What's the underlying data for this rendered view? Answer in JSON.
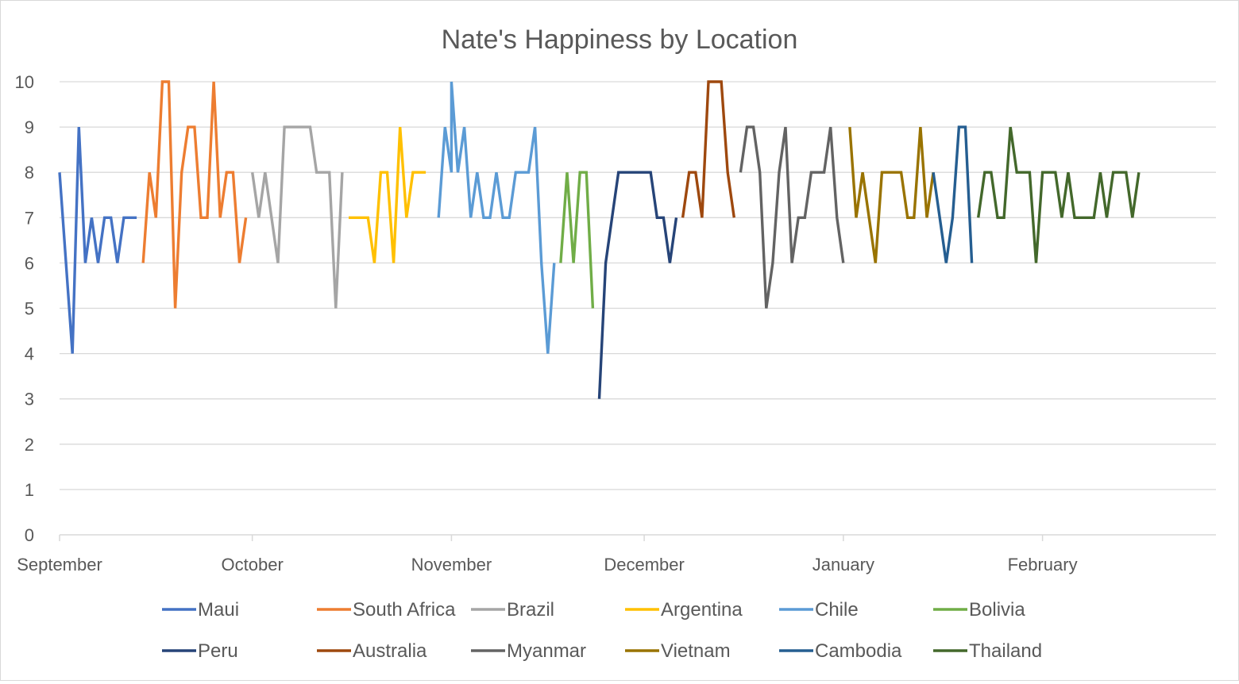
{
  "chart_data": {
    "type": "line",
    "title": "Nate's Happiness by Location",
    "xlabel": "",
    "ylabel": "",
    "x_domain": [
      "2018-09-01",
      "2019-02-28"
    ],
    "ylim": [
      0,
      10
    ],
    "y_ticks": [
      0,
      1,
      2,
      3,
      4,
      5,
      6,
      7,
      8,
      9,
      10
    ],
    "x_ticks": [
      {
        "label": "September",
        "date": "2018-09-01"
      },
      {
        "label": "October",
        "date": "2018-10-01"
      },
      {
        "label": "November",
        "date": "2018-11-01"
      },
      {
        "label": "December",
        "date": "2018-12-01"
      },
      {
        "label": "January",
        "date": "2019-01-01"
      },
      {
        "label": "February",
        "date": "2019-02-01"
      }
    ],
    "grid": true,
    "legend_position": "bottom",
    "series": [
      {
        "name": "Maui",
        "color": "#4472C4",
        "points": [
          [
            "2018-09-01",
            8
          ],
          [
            "2018-09-03",
            4
          ],
          [
            "2018-09-04",
            9
          ],
          [
            "2018-09-05",
            6
          ],
          [
            "2018-09-06",
            7
          ],
          [
            "2018-09-07",
            6
          ],
          [
            "2018-09-08",
            7
          ],
          [
            "2018-09-09",
            7
          ],
          [
            "2018-09-10",
            6
          ],
          [
            "2018-09-11",
            7
          ],
          [
            "2018-09-12",
            7
          ],
          [
            "2018-09-13",
            7
          ]
        ]
      },
      {
        "name": "South Africa",
        "color": "#ED7D31",
        "points": [
          [
            "2018-09-14",
            6
          ],
          [
            "2018-09-15",
            8
          ],
          [
            "2018-09-16",
            7
          ],
          [
            "2018-09-17",
            10
          ],
          [
            "2018-09-18",
            10
          ],
          [
            "2018-09-19",
            5
          ],
          [
            "2018-09-20",
            8
          ],
          [
            "2018-09-21",
            9
          ],
          [
            "2018-09-22",
            9
          ],
          [
            "2018-09-23",
            7
          ],
          [
            "2018-09-24",
            7
          ],
          [
            "2018-09-25",
            10
          ],
          [
            "2018-09-26",
            7
          ],
          [
            "2018-09-27",
            8
          ],
          [
            "2018-09-28",
            8
          ],
          [
            "2018-09-29",
            6
          ],
          [
            "2018-09-30",
            7
          ]
        ]
      },
      {
        "name": "Brazil",
        "color": "#A5A5A5",
        "points": [
          [
            "2018-10-01",
            8
          ],
          [
            "2018-10-02",
            7
          ],
          [
            "2018-10-03",
            8
          ],
          [
            "2018-10-05",
            6
          ],
          [
            "2018-10-06",
            9
          ],
          [
            "2018-10-07",
            9
          ],
          [
            "2018-10-08",
            9
          ],
          [
            "2018-10-09",
            9
          ],
          [
            "2018-10-10",
            9
          ],
          [
            "2018-10-11",
            8
          ],
          [
            "2018-10-12",
            8
          ],
          [
            "2018-10-13",
            8
          ],
          [
            "2018-10-14",
            5
          ],
          [
            "2018-10-15",
            8
          ]
        ]
      },
      {
        "name": "Argentina",
        "color": "#FFC000",
        "points": [
          [
            "2018-10-16",
            7
          ],
          [
            "2018-10-17",
            7
          ],
          [
            "2018-10-18",
            7
          ],
          [
            "2018-10-19",
            7
          ],
          [
            "2018-10-20",
            6
          ],
          [
            "2018-10-21",
            8
          ],
          [
            "2018-10-22",
            8
          ],
          [
            "2018-10-23",
            6
          ],
          [
            "2018-10-24",
            9
          ],
          [
            "2018-10-25",
            7
          ],
          [
            "2018-10-26",
            8
          ],
          [
            "2018-10-27",
            8
          ],
          [
            "2018-10-28",
            8
          ]
        ]
      },
      {
        "name": "Chile",
        "color": "#5B9BD5",
        "points": [
          [
            "2018-10-30",
            7
          ],
          [
            "2018-10-31",
            9
          ],
          [
            "2018-11-01",
            8
          ],
          [
            "2018-11-01",
            10
          ],
          [
            "2018-11-02",
            8
          ],
          [
            "2018-11-03",
            9
          ],
          [
            "2018-11-04",
            7
          ],
          [
            "2018-11-05",
            8
          ],
          [
            "2018-11-06",
            7
          ],
          [
            "2018-11-07",
            7
          ],
          [
            "2018-11-08",
            8
          ],
          [
            "2018-11-09",
            7
          ],
          [
            "2018-11-10",
            7
          ],
          [
            "2018-11-11",
            8
          ],
          [
            "2018-11-12",
            8
          ],
          [
            "2018-11-13",
            8
          ],
          [
            "2018-11-14",
            9
          ],
          [
            "2018-11-15",
            6
          ],
          [
            "2018-11-16",
            4
          ],
          [
            "2018-11-17",
            6
          ]
        ]
      },
      {
        "name": "Bolivia",
        "color": "#70AD47",
        "points": [
          [
            "2018-11-18",
            6
          ],
          [
            "2018-11-19",
            8
          ],
          [
            "2018-11-20",
            6
          ],
          [
            "2018-11-21",
            8
          ],
          [
            "2018-11-22",
            8
          ],
          [
            "2018-11-23",
            5
          ]
        ]
      },
      {
        "name": "Peru",
        "color": "#264478",
        "points": [
          [
            "2018-11-24",
            3
          ],
          [
            "2018-11-25",
            6
          ],
          [
            "2018-11-26",
            7
          ],
          [
            "2018-11-27",
            8
          ],
          [
            "2018-11-28",
            8
          ],
          [
            "2018-11-29",
            8
          ],
          [
            "2018-11-30",
            8
          ],
          [
            "2018-12-01",
            8
          ],
          [
            "2018-12-02",
            8
          ],
          [
            "2018-12-03",
            7
          ],
          [
            "2018-12-04",
            7
          ],
          [
            "2018-12-05",
            6
          ],
          [
            "2018-12-06",
            7
          ]
        ]
      },
      {
        "name": "Australia",
        "color": "#9E480E",
        "points": [
          [
            "2018-12-07",
            7
          ],
          [
            "2018-12-08",
            8
          ],
          [
            "2018-12-09",
            8
          ],
          [
            "2018-12-10",
            7
          ],
          [
            "2018-12-11",
            10
          ],
          [
            "2018-12-12",
            10
          ],
          [
            "2018-12-13",
            10
          ],
          [
            "2018-12-14",
            8
          ],
          [
            "2018-12-15",
            7
          ]
        ]
      },
      {
        "name": "Myanmar",
        "color": "#636363",
        "points": [
          [
            "2018-12-16",
            8
          ],
          [
            "2018-12-17",
            9
          ],
          [
            "2018-12-18",
            9
          ],
          [
            "2018-12-19",
            8
          ],
          [
            "2018-12-20",
            5
          ],
          [
            "2018-12-21",
            6
          ],
          [
            "2018-12-22",
            8
          ],
          [
            "2018-12-23",
            9
          ],
          [
            "2018-12-24",
            6
          ],
          [
            "2018-12-25",
            7
          ],
          [
            "2018-12-26",
            7
          ],
          [
            "2018-12-27",
            8
          ],
          [
            "2018-12-28",
            8
          ],
          [
            "2018-12-29",
            8
          ],
          [
            "2018-12-30",
            9
          ],
          [
            "2018-12-31",
            7
          ],
          [
            "2019-01-01",
            6
          ]
        ]
      },
      {
        "name": "Vietnam",
        "color": "#997300",
        "points": [
          [
            "2019-01-02",
            9
          ],
          [
            "2019-01-03",
            7
          ],
          [
            "2019-01-04",
            8
          ],
          [
            "2019-01-05",
            7
          ],
          [
            "2019-01-06",
            6
          ],
          [
            "2019-01-07",
            8
          ],
          [
            "2019-01-08",
            8
          ],
          [
            "2019-01-09",
            8
          ],
          [
            "2019-01-10",
            8
          ],
          [
            "2019-01-11",
            7
          ],
          [
            "2019-01-12",
            7
          ],
          [
            "2019-01-13",
            9
          ],
          [
            "2019-01-14",
            7
          ],
          [
            "2019-01-15",
            8
          ]
        ]
      },
      {
        "name": "Cambodia",
        "color": "#255E91",
        "points": [
          [
            "2019-01-15",
            8
          ],
          [
            "2019-01-16",
            7
          ],
          [
            "2019-01-17",
            6
          ],
          [
            "2019-01-18",
            7
          ],
          [
            "2019-01-19",
            9
          ],
          [
            "2019-01-20",
            9
          ],
          [
            "2019-01-21",
            6
          ]
        ]
      },
      {
        "name": "Thailand",
        "color": "#43682B",
        "points": [
          [
            "2019-01-22",
            7
          ],
          [
            "2019-01-23",
            8
          ],
          [
            "2019-01-24",
            8
          ],
          [
            "2019-01-25",
            7
          ],
          [
            "2019-01-26",
            7
          ],
          [
            "2019-01-27",
            9
          ],
          [
            "2019-01-28",
            8
          ],
          [
            "2019-01-29",
            8
          ],
          [
            "2019-01-30",
            8
          ],
          [
            "2019-01-31",
            6
          ],
          [
            "2019-02-01",
            8
          ],
          [
            "2019-02-02",
            8
          ],
          [
            "2019-02-03",
            8
          ],
          [
            "2019-02-04",
            7
          ],
          [
            "2019-02-05",
            8
          ],
          [
            "2019-02-06",
            7
          ],
          [
            "2019-02-07",
            7
          ],
          [
            "2019-02-08",
            7
          ],
          [
            "2019-02-09",
            7
          ],
          [
            "2019-02-10",
            8
          ],
          [
            "2019-02-11",
            7
          ],
          [
            "2019-02-12",
            8
          ],
          [
            "2019-02-13",
            8
          ],
          [
            "2019-02-14",
            8
          ],
          [
            "2019-02-15",
            7
          ],
          [
            "2019-02-16",
            8
          ]
        ]
      }
    ]
  }
}
